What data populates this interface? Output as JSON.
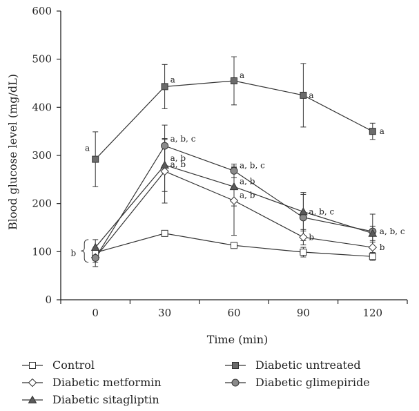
{
  "chart_data": {
    "type": "line",
    "xlabel": "Time (min)",
    "ylabel": "Blood glucose level (mg/dL)",
    "x": [
      0,
      30,
      60,
      90,
      120
    ],
    "x_ticks": [
      "0",
      "30",
      "60",
      "90",
      "120"
    ],
    "y_ticks": [
      "0",
      "100",
      "200",
      "300",
      "400",
      "500",
      "600"
    ],
    "ylim": [
      0,
      600
    ],
    "grid": false,
    "legend_position": "bottom",
    "series": [
      {
        "name": "Control",
        "marker": "square-open",
        "color": "#ffffff",
        "values": [
          98,
          138,
          113,
          99,
          90
        ],
        "err": [
          10,
          4,
          5,
          10,
          8
        ]
      },
      {
        "name": "Diabetic untreated",
        "marker": "square-filled",
        "color": "#6b6b6b",
        "values": [
          292,
          443,
          455,
          425,
          350
        ],
        "err": [
          57,
          46,
          50,
          66,
          17
        ]
      },
      {
        "name": "Diabetic metformin",
        "marker": "diamond-open",
        "color": "#ffffff",
        "values": [
          88,
          267,
          206,
          130,
          109
        ],
        "err": [
          10,
          66,
          72,
          16,
          11
        ]
      },
      {
        "name": "Diabetic glimepiride",
        "marker": "circle-filled",
        "color": "#8a8a8a",
        "values": [
          87,
          320,
          268,
          171,
          142
        ],
        "err": [
          18,
          43,
          14,
          48,
          36
        ]
      },
      {
        "name": "Diabetic sitagliptin",
        "marker": "triangle-filled",
        "color": "#5a5a5a",
        "values": [
          109,
          280,
          235,
          183,
          138
        ],
        "err": [
          16,
          55,
          40,
          40,
          15
        ]
      }
    ],
    "annotations": [
      {
        "x": 0,
        "y": 292,
        "text": "a"
      },
      {
        "x": 30,
        "y": 443,
        "text": "a"
      },
      {
        "x": 60,
        "y": 455,
        "text": "a"
      },
      {
        "x": 90,
        "y": 425,
        "text": "a"
      },
      {
        "x": 120,
        "y": 350,
        "text": "a"
      },
      {
        "x": 30,
        "y": 320,
        "text": "a, b, c"
      },
      {
        "x": 30,
        "y": 280,
        "text": "a, b"
      },
      {
        "x": 30,
        "y": 267,
        "text": "a, b"
      },
      {
        "x": 60,
        "y": 268,
        "text": "a, b, c"
      },
      {
        "x": 60,
        "y": 235,
        "text": "a, b"
      },
      {
        "x": 60,
        "y": 206,
        "text": "a, b"
      },
      {
        "x": 90,
        "y": 183,
        "text": "a, b, c"
      },
      {
        "x": 90,
        "y": 130,
        "text": "b"
      },
      {
        "x": 120,
        "y": 142,
        "text": "a, b, c"
      },
      {
        "x": 120,
        "y": 109,
        "text": "b"
      },
      {
        "x": 0,
        "y": 98,
        "text": "b"
      }
    ]
  }
}
